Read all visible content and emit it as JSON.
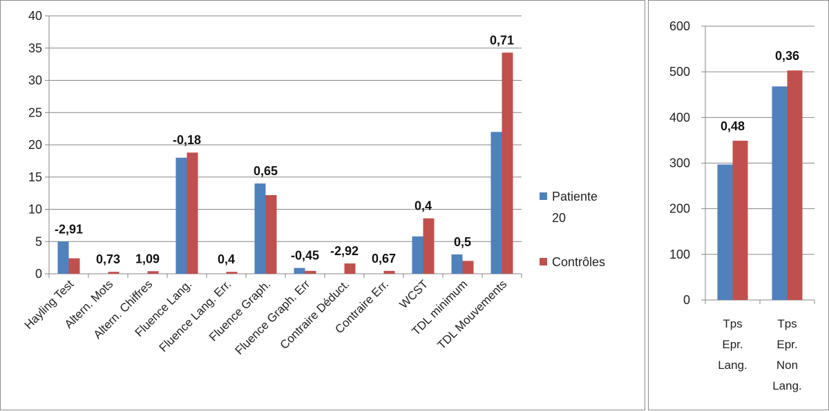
{
  "colors": {
    "patiente": "#4F81BD",
    "controles": "#C0504D",
    "grid": "#868686",
    "axis": "#868686"
  },
  "chart_data": [
    {
      "type": "bar",
      "categories": [
        "Hayling Test",
        "Altern. Mots",
        "Altern. Chiffres",
        "Fluence Lang.",
        "Fluence Lang. Err.",
        "Fluence Graph.",
        "Fluence Graph. Err",
        "Contraire Déduct.",
        "Contraire Err.",
        "WCST",
        "TDL minimum",
        "TDL Mouvements"
      ],
      "series": [
        {
          "name": "Patiente 20",
          "values": [
            5,
            0,
            0,
            18,
            0,
            14,
            0.9,
            0,
            0,
            5.8,
            3,
            22
          ]
        },
        {
          "name": "Contrôles",
          "values": [
            2.4,
            0.3,
            0.4,
            18.8,
            0.3,
            12.2,
            0.45,
            1.6,
            0.45,
            8.6,
            2,
            34.3
          ]
        }
      ],
      "data_labels": [
        "-2,91",
        "0,73",
        "1,09",
        "-0,18",
        "0,4",
        "0,65",
        "-0,45",
        "-2,92",
        "0,67",
        "0,4",
        "0,5",
        "0,71"
      ],
      "yticks": [
        "0",
        "5",
        "10",
        "15",
        "20",
        "25",
        "30",
        "35",
        "40"
      ],
      "ylim": [
        0,
        40
      ],
      "grid": true,
      "legend": {
        "position": "right",
        "entries": [
          "Patiente 20",
          "Contrôles"
        ],
        "lines": [
          [
            "Patiente",
            "20"
          ],
          [
            "Contrôles"
          ]
        ]
      }
    },
    {
      "type": "bar",
      "categories": [
        "Tps Epr. Lang.",
        "Tps Epr. Non Lang."
      ],
      "category_lines": [
        [
          "Tps",
          "Epr.",
          "Lang."
        ],
        [
          "Tps",
          "Epr.",
          "Non",
          "Lang."
        ]
      ],
      "series": [
        {
          "name": "Patiente 20",
          "values": [
            297,
            468
          ]
        },
        {
          "name": "Contrôles",
          "values": [
            349,
            503
          ]
        }
      ],
      "data_labels": [
        "0,48",
        "0,36"
      ],
      "yticks": [
        "0",
        "100",
        "200",
        "300",
        "400",
        "500",
        "600"
      ],
      "ylim": [
        0,
        600
      ],
      "grid": true
    }
  ]
}
